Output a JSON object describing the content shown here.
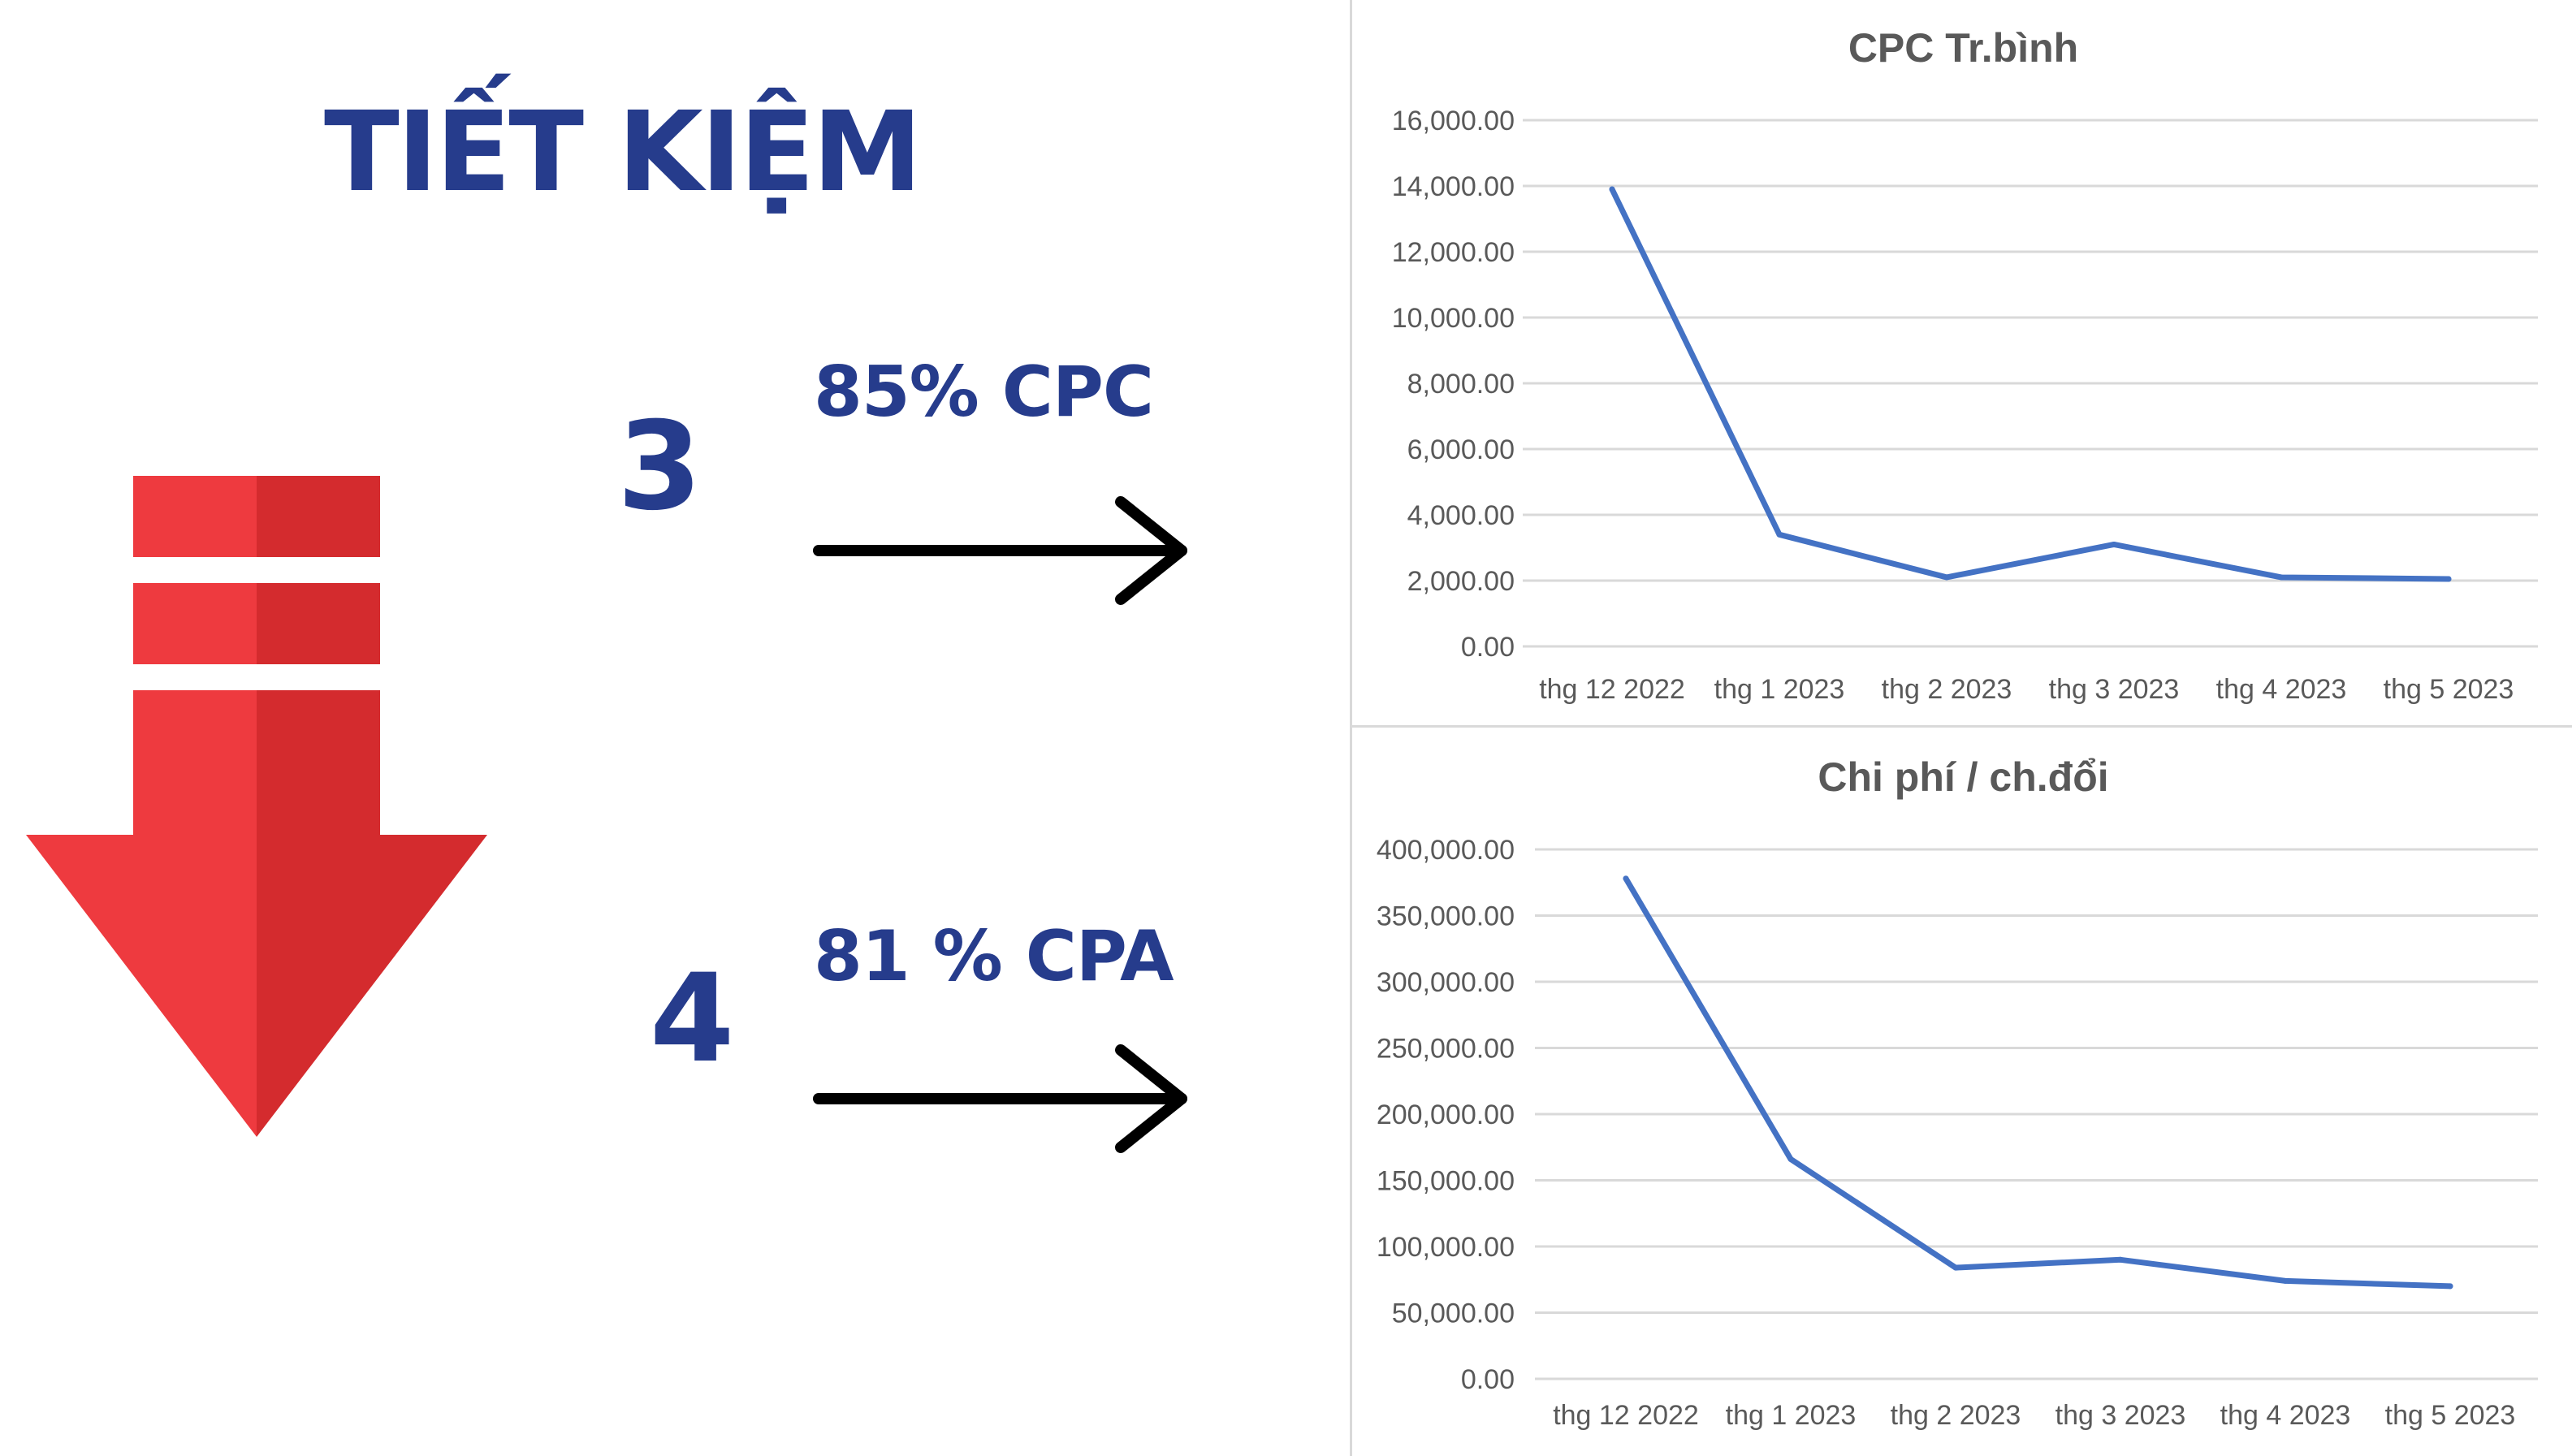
{
  "headline": "TIẾT KIỆM",
  "items": [
    {
      "number": "3",
      "stat": "85% CPC"
    },
    {
      "number": "4",
      "stat": "81 % CPA"
    }
  ],
  "colors": {
    "accent": "#263c8c",
    "arrow_light": "#ee3a3f",
    "arrow_dark": "#d42b2e",
    "line": "#4472c4",
    "axis_text": "#595959",
    "grid": "#d9d9d9"
  },
  "icons": [
    "down-arrow-icon",
    "right-arrow-icon"
  ],
  "chart_data": [
    {
      "type": "line",
      "title": "CPC Tr.bình",
      "categories": [
        "thg 12 2022",
        "thg 1 2023",
        "thg 2 2023",
        "thg 3 2023",
        "thg 4 2023",
        "thg 5 2023"
      ],
      "series": [
        {
          "values": [
            13900,
            3400,
            2100,
            3100,
            2100,
            2050
          ]
        }
      ],
      "ylim": [
        0,
        16000
      ],
      "yticks": [
        "16,000.00",
        "14,000.00",
        "12,000.00",
        "10,000.00",
        "8,000.00",
        "6,000.00",
        "4,000.00",
        "2,000.00",
        "0.00"
      ],
      "grid": true,
      "legend": "none"
    },
    {
      "type": "line",
      "title": "Chi phí / ch.đổi",
      "categories": [
        "thg 12 2022",
        "thg 1 2023",
        "thg 2 2023",
        "thg 3 2023",
        "thg 4 2023",
        "thg 5 2023"
      ],
      "series": [
        {
          "values": [
            378000,
            166000,
            84000,
            90000,
            74000,
            70000
          ]
        }
      ],
      "ylim": [
        0,
        400000
      ],
      "yticks": [
        "400,000.00",
        "350,000.00",
        "300,000.00",
        "250,000.00",
        "200,000.00",
        "150,000.00",
        "100,000.00",
        "50,000.00",
        "0.00"
      ],
      "grid": true,
      "legend": "none"
    }
  ]
}
